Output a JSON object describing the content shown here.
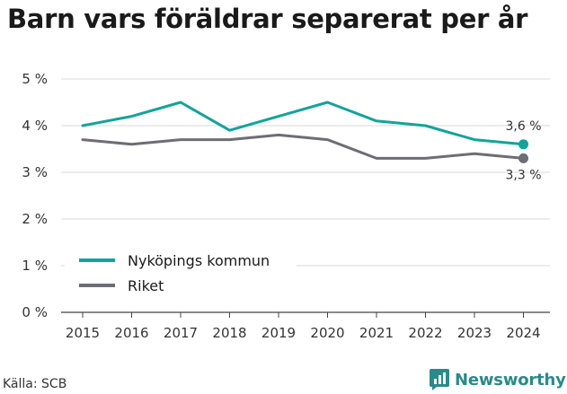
{
  "title": "Barn vars föräldrar separerat per år",
  "source": "Källa: SCB",
  "brand": {
    "name": "Newsworthy",
    "logo_icon": "bar-chart-speech-bubble-icon",
    "color": "#2b8a89"
  },
  "chart_data": {
    "type": "line",
    "x": [
      "2015",
      "2016",
      "2017",
      "2018",
      "2019",
      "2020",
      "2021",
      "2022",
      "2023",
      "2024"
    ],
    "series": [
      {
        "name": "Nyköpings kommun",
        "color": "#14a39a",
        "values": [
          4.0,
          4.2,
          4.5,
          3.9,
          4.2,
          4.5,
          4.1,
          4.0,
          3.7,
          3.6
        ],
        "end_label": "3,6 %"
      },
      {
        "name": "Riket",
        "color": "#6d6d74",
        "values": [
          3.7,
          3.6,
          3.7,
          3.7,
          3.8,
          3.7,
          3.3,
          3.3,
          3.4,
          3.3
        ],
        "end_label": "3,3 %"
      }
    ],
    "y_ticks": [
      0,
      1,
      2,
      3,
      4,
      5
    ],
    "y_tick_labels": [
      "0 %",
      "1 %",
      "2 %",
      "3 %",
      "4 %",
      "5 %"
    ],
    "ylim": [
      0,
      5
    ],
    "grid": "horizontal",
    "legend_position": "bottom-left",
    "xlabel": "",
    "ylabel": ""
  }
}
